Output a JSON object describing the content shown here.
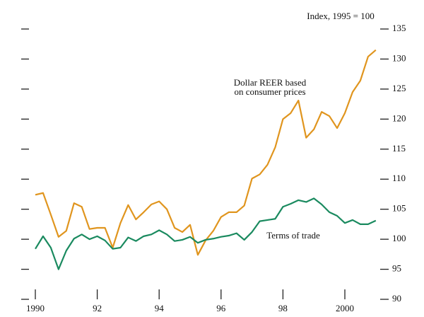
{
  "chart_data": {
    "type": "line",
    "y_axis_label": "Index, 1995 = 100",
    "annotations": [
      "Dollar REER based",
      "on consumer prices",
      "Terms of trade"
    ],
    "x": [
      1990,
      1990.25,
      1990.5,
      1990.75,
      1991,
      1991.25,
      1991.5,
      1991.75,
      1992,
      1992.25,
      1992.5,
      1992.75,
      1993,
      1993.25,
      1993.5,
      1993.75,
      1994,
      1994.25,
      1994.5,
      1994.75,
      1995,
      1995.25,
      1995.5,
      1995.75,
      1996,
      1996.25,
      1996.5,
      1996.75,
      1997,
      1997.25,
      1997.5,
      1997.75,
      1998,
      1998.25,
      1998.5,
      1998.75,
      1999,
      1999.25,
      1999.5,
      1999.75,
      2000,
      2000.25,
      2000.5,
      2000.75,
      2001
    ],
    "series": [
      {
        "name": "Dollar REER based on consumer prices",
        "color": "#e0951e",
        "values": [
          107.4,
          107.7,
          104.1,
          100.4,
          101.4,
          106.0,
          105.4,
          101.7,
          101.9,
          101.9,
          98.6,
          102.7,
          105.7,
          103.3,
          104.5,
          105.8,
          106.3,
          105.0,
          101.9,
          101.2,
          102.4,
          97.4,
          99.8,
          101.4,
          103.7,
          104.5,
          104.5,
          105.6,
          110.1,
          110.8,
          112.4,
          115.3,
          120.0,
          121.0,
          123.1,
          116.9,
          118.3,
          121.2,
          120.5,
          118.5,
          121.0,
          124.5,
          126.4,
          130.4,
          131.5
        ]
      },
      {
        "name": "Terms of trade",
        "color": "#1a8a5f",
        "values": [
          98.4,
          100.5,
          98.6,
          95.0,
          98.1,
          100.1,
          100.8,
          100.0,
          100.5,
          99.8,
          98.4,
          98.6,
          100.3,
          99.7,
          100.5,
          100.8,
          101.5,
          100.8,
          99.7,
          99.9,
          100.4,
          99.4,
          99.9,
          100.1,
          100.4,
          100.6,
          101.0,
          99.9,
          101.2,
          103.0,
          103.2,
          103.4,
          105.4,
          105.9,
          106.5,
          106.2,
          106.8,
          105.8,
          104.5,
          103.9,
          102.7,
          103.2,
          102.5,
          102.5,
          103.1
        ]
      }
    ],
    "xlim": [
      1990,
      2001
    ],
    "xticks": [
      1990,
      {
        "value": 1992,
        "label": "92"
      },
      {
        "value": 1994,
        "label": "94"
      },
      {
        "value": 1996,
        "label": "96"
      },
      {
        "value": 1998,
        "label": "98"
      },
      2000
    ],
    "ylim": [
      90,
      135
    ],
    "yticks": [
      90,
      95,
      100,
      105,
      110,
      115,
      120,
      125,
      130,
      135
    ],
    "y_axis_side": "right"
  }
}
